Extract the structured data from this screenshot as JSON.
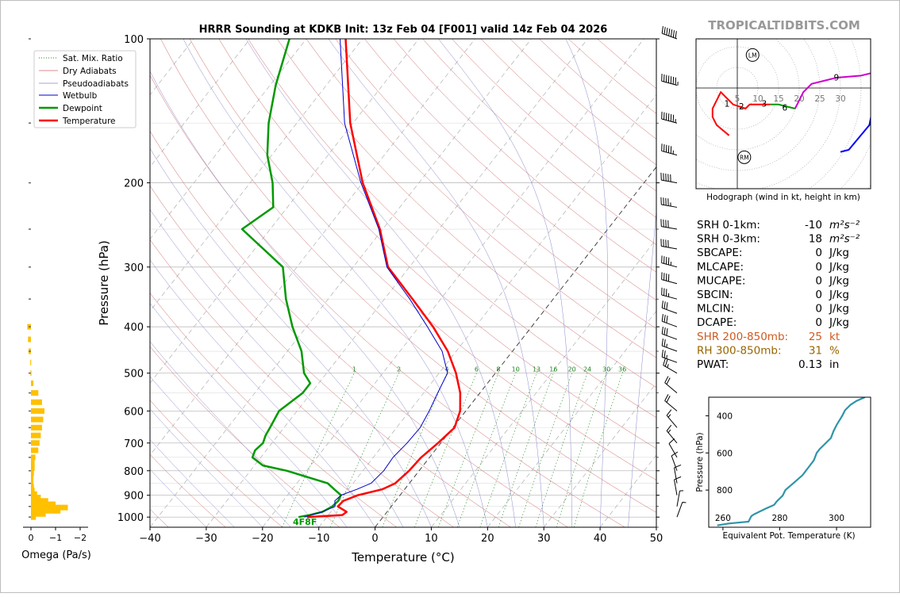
{
  "title": "HRRR Sounding at KDKB Init: 13z Feb 04 [F001] valid 14z Feb 04 2026",
  "watermark": "TROPICALTIDBITS.COM",
  "colors": {
    "temperature": "#ff0000",
    "dewpoint": "#009900",
    "wetbulb": "#0000cc",
    "dry_adiabat": "#cc6666",
    "pseudoadiabat": "#8888cc",
    "mixing_ratio": "#228822",
    "omega": "#ffc000",
    "theta_e": "#2e95a8",
    "orange_text": "#d05a20",
    "brown_text": "#996600"
  },
  "chart_data": [
    {
      "id": "skewt",
      "type": "line",
      "xlabel": "Temperature (°C)",
      "ylabel": "Pressure (hPa)",
      "xlim": [
        -40,
        50
      ],
      "ylim": [
        1050,
        100
      ],
      "y_scale": "log",
      "skew": true,
      "x_ticks": [
        -40,
        -30,
        -20,
        -10,
        0,
        10,
        20,
        30,
        40,
        50
      ],
      "x_tick_labels": [
        "−40",
        "−30",
        "−20",
        "−10",
        "0",
        "10",
        "20",
        "30",
        "40",
        "50"
      ],
      "y_ticks": [
        100,
        200,
        300,
        400,
        500,
        600,
        700,
        800,
        900,
        1000
      ],
      "legend": {
        "position": "top-left",
        "entries": [
          "Sat. Mix. Ratio",
          "Dry Adiabats",
          "Pseudoadiabats",
          "Wetbulb",
          "Dewpoint",
          "Temperature"
        ]
      },
      "mixing_ratio_labels": [
        "1",
        "2",
        "4",
        "6",
        "8",
        "10",
        "13",
        "16",
        "20",
        "24",
        "30",
        "36"
      ],
      "surface_label": "4F8F",
      "series": [
        {
          "name": "Temperature",
          "pressure": [
            1000,
            990,
            975,
            950,
            925,
            900,
            875,
            850,
            800,
            750,
            700,
            650,
            600,
            550,
            500,
            450,
            400,
            350,
            300,
            275,
            250,
            200,
            150,
            100
          ],
          "values": [
            -13.5,
            -7.5,
            -7.2,
            -9.5,
            -9.3,
            -7.5,
            -4,
            -2.5,
            -1.8,
            -1.5,
            -0.5,
            0.3,
            -1,
            -3.5,
            -7,
            -11.5,
            -17.5,
            -25,
            -33.8,
            -37,
            -40.5,
            -50,
            -60.5,
            -73
          ]
        },
        {
          "name": "Dewpoint",
          "pressure": [
            1000,
            990,
            975,
            950,
            925,
            900,
            875,
            850,
            800,
            780,
            750,
            725,
            700,
            675,
            650,
            600,
            550,
            525,
            500,
            450,
            400,
            350,
            300,
            250,
            225,
            200,
            175,
            150,
            125,
            100
          ],
          "values": [
            -15,
            -13.3,
            -11.5,
            -10.5,
            -10.2,
            -10.5,
            -12.5,
            -14.5,
            -23.5,
            -28.5,
            -31.5,
            -32,
            -31.6,
            -32.2,
            -32.5,
            -33.2,
            -31.5,
            -31.5,
            -34,
            -37.5,
            -42.5,
            -47.5,
            -52.5,
            -65,
            -62.5,
            -66,
            -70.8,
            -75,
            -79,
            -83
          ]
        },
        {
          "name": "Wetbulb",
          "pressure": [
            1000,
            975,
            950,
            925,
            900,
            875,
            850,
            800,
            750,
            700,
            650,
            600,
            550,
            500,
            450,
            400,
            350,
            300,
            275,
            250,
            200,
            150,
            100
          ],
          "values": [
            -14,
            -11.5,
            -10,
            -10.8,
            -10.5,
            -8.5,
            -6.8,
            -6.3,
            -6.5,
            -6,
            -5.8,
            -6.5,
            -7.5,
            -8.5,
            -12.5,
            -18.5,
            -25.5,
            -34,
            -37.2,
            -40.7,
            -50.3,
            -61.5,
            -74
          ]
        }
      ]
    },
    {
      "id": "omega",
      "type": "bar",
      "xlabel": "Omega (Pa/s)",
      "x_ticks": [
        0,
        -1,
        -2
      ],
      "x_tick_labels": [
        "0",
        "−1",
        "−2"
      ],
      "pressure": [
        1000,
        985,
        970,
        955,
        940,
        925,
        910,
        895,
        880,
        865,
        850,
        830,
        810,
        790,
        770,
        750,
        725,
        700,
        675,
        650,
        625,
        600,
        575,
        550,
        525,
        500,
        475,
        450,
        425,
        400
      ],
      "values": [
        -0.2,
        -0.6,
        -1.2,
        -1.5,
        -1.0,
        -0.7,
        -0.4,
        -0.25,
        -0.15,
        -0.12,
        -0.1,
        -0.1,
        -0.12,
        -0.15,
        -0.15,
        -0.18,
        -0.3,
        -0.35,
        -0.4,
        -0.45,
        -0.5,
        -0.55,
        -0.45,
        -0.3,
        -0.1,
        0.02,
        0.03,
        0.1,
        0.12,
        0.15
      ]
    },
    {
      "id": "hodograph",
      "type": "line",
      "caption": "Hodograph (wind in kt, height in km)",
      "ring_labels": [
        "5",
        "10",
        "15",
        "20",
        "25",
        "30"
      ],
      "motion_markers": [
        "LM",
        "RM"
      ],
      "height_labels": [
        "1",
        "2",
        "3",
        "6",
        "9"
      ],
      "segments": [
        {
          "color": "#ff0000",
          "u": [
            -2,
            -5,
            -6,
            -6,
            -5,
            -4,
            -1,
            2,
            3,
            5,
            8
          ],
          "v": [
            -11.5,
            -9,
            -7,
            -5,
            -3,
            -1,
            -4,
            -5,
            -4,
            -4,
            -4
          ]
        },
        {
          "color": "#009900",
          "u": [
            8,
            10,
            12,
            14
          ],
          "v": [
            -4,
            -4,
            -4.5,
            -5
          ]
        },
        {
          "color": "#cc00cc",
          "u": [
            14,
            16,
            18,
            24,
            30,
            34
          ],
          "v": [
            -5,
            -1,
            1,
            2.5,
            3,
            4
          ]
        },
        {
          "color": "#0000ff",
          "u": [
            34,
            33,
            32,
            27,
            25
          ],
          "v": [
            4,
            -4,
            -9,
            -15,
            -15.5
          ]
        }
      ]
    },
    {
      "id": "theta_e",
      "type": "line",
      "xlabel": "Equivalent Pot. Temperature (K)",
      "ylabel": "Pressure (hPa)",
      "x_ticks": [
        260,
        280,
        300
      ],
      "y_ticks": [
        400,
        600,
        800
      ],
      "xlim": [
        255,
        312
      ],
      "ylim": [
        1000,
        300
      ],
      "pressure": [
        990,
        980,
        970,
        940,
        930,
        915,
        900,
        880,
        860,
        830,
        800,
        760,
        720,
        680,
        640,
        600,
        580,
        550,
        520,
        480,
        450,
        400,
        370,
        340,
        320,
        300
      ],
      "values": [
        258,
        262,
        269,
        270,
        271,
        273,
        275,
        278,
        279,
        281,
        282,
        285,
        288,
        290,
        292,
        293,
        294,
        296,
        298,
        299,
        300,
        302,
        303,
        305,
        307,
        310
      ]
    }
  ],
  "parameters": [
    {
      "label": "SRH 0-1km:",
      "value": "-10",
      "unit": "m²s⁻²",
      "style": "normal"
    },
    {
      "label": "SRH 0-3km:",
      "value": "18",
      "unit": "m²s⁻²",
      "style": "normal"
    },
    {
      "label": "SBCAPE:",
      "value": "0",
      "unit": "J/kg",
      "style": "normal"
    },
    {
      "label": "MLCAPE:",
      "value": "0",
      "unit": "J/kg",
      "style": "normal"
    },
    {
      "label": "MUCAPE:",
      "value": "0",
      "unit": "J/kg",
      "style": "normal"
    },
    {
      "label": "SBCIN:",
      "value": "0",
      "unit": "J/kg",
      "style": "normal"
    },
    {
      "label": "MLCIN:",
      "value": "0",
      "unit": "J/kg",
      "style": "normal"
    },
    {
      "label": "DCAPE:",
      "value": "0",
      "unit": "J/kg",
      "style": "normal"
    },
    {
      "label": "SHR 200-850mb:",
      "value": "25",
      "unit": "kt",
      "style": "orange"
    },
    {
      "label": "RH 300-850mb:",
      "value": "31",
      "unit": "%",
      "style": "brown"
    },
    {
      "label": "PWAT:",
      "value": "0.13",
      "unit": "in",
      "style": "normal"
    }
  ],
  "wind_barbs": {
    "pressure": [
      100,
      125,
      150,
      175,
      200,
      225,
      250,
      275,
      300,
      325,
      350,
      375,
      400,
      425,
      450,
      475,
      500,
      550,
      600,
      650,
      700,
      750,
      800,
      850,
      900,
      950,
      1000
    ],
    "speed_kt": [
      70,
      75,
      65,
      55,
      50,
      45,
      40,
      40,
      45,
      40,
      35,
      30,
      30,
      30,
      25,
      25,
      25,
      20,
      20,
      15,
      15,
      10,
      10,
      10,
      10,
      5,
      5
    ],
    "dir_deg": [
      290,
      285,
      285,
      285,
      280,
      280,
      280,
      280,
      285,
      285,
      285,
      290,
      290,
      290,
      290,
      290,
      300,
      310,
      310,
      320,
      320,
      330,
      340,
      350,
      350,
      10,
      20
    ]
  }
}
